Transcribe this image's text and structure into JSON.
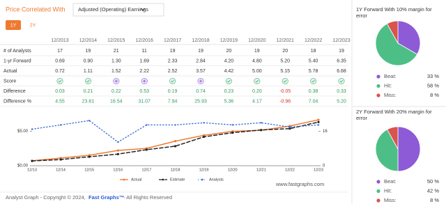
{
  "header": {
    "label": "Price Correlated With",
    "dropdown": "Adjusted (Operating) Earnings",
    "tabs": [
      "1Y",
      "2Y"
    ],
    "active_tab": 0
  },
  "table": {
    "columns": [
      "12/2013",
      "12/2014",
      "12/2015",
      "12/2016",
      "12/2017",
      "12/2018",
      "12/2019",
      "12/2020",
      "12/2021",
      "12/2022",
      "12/2023"
    ],
    "rows": [
      {
        "label": "# of Analysts",
        "cells": [
          "17",
          "19",
          "21",
          "11",
          "19",
          "19",
          "20",
          "19",
          "20",
          "18",
          "19"
        ]
      },
      {
        "label": "1-yr Forward",
        "cells": [
          "0.69",
          "0.90",
          "1.30",
          "1.69",
          "2.33",
          "2.84",
          "4.20",
          "4.80",
          "5.20",
          "5.40",
          "6.35"
        ]
      },
      {
        "label": "Actual",
        "cells": [
          "0.72",
          "1.11",
          "1.52",
          "2.22",
          "2.52",
          "3.57",
          "4.42",
          "5.00",
          "5.15",
          "5.78",
          "6.68"
        ]
      },
      {
        "label": "Score",
        "icons": [
          "hit",
          "hit",
          "beat",
          "beat",
          "hit",
          "beat",
          "hit",
          "hit",
          "hit",
          "hit",
          "hit"
        ]
      },
      {
        "label": "Difference",
        "cells": [
          "0.03",
          "0.21",
          "0.22",
          "0.53",
          "0.19",
          "0.74",
          "0.23",
          "0.20",
          "-0.05",
          "0.38",
          "0.33"
        ],
        "colored": true
      },
      {
        "label": "Difference %",
        "cells": [
          "4.55",
          "23.61",
          "16.54",
          "31.07",
          "7.94",
          "25.93",
          "5.36",
          "4.17",
          "-0.96",
          "7.04",
          "5.20"
        ],
        "colored": true
      }
    ]
  },
  "chart_data": [
    {
      "type": "line",
      "categories": [
        "12/13",
        "12/14",
        "12/15",
        "12/16",
        "12/17",
        "12/18",
        "12/19",
        "12/20",
        "12/21",
        "12/22",
        "12/23"
      ],
      "ylim": [
        0,
        7.7
      ],
      "yticks": [
        {
          "value": 0,
          "label": "$0.00"
        },
        {
          "value": 5,
          "label": "$5.00"
        }
      ],
      "y2lim": [
        0,
        24.64
      ],
      "y2ticks": [
        0,
        16
      ],
      "series": [
        {
          "name": "Actual",
          "color": "#ee7a30",
          "style": "solid",
          "values": [
            0.72,
            1.11,
            1.52,
            2.22,
            2.52,
            3.57,
            4.42,
            5.0,
            5.15,
            5.78,
            6.68
          ]
        },
        {
          "name": "Estimate",
          "color": "#222222",
          "style": "dashed",
          "values": [
            0.69,
            0.9,
            1.3,
            1.69,
            2.33,
            2.84,
            4.2,
            4.8,
            5.2,
            5.4,
            6.35
          ]
        },
        {
          "name": "Analysts",
          "color": "#3b6fd6",
          "style": "dotted",
          "axis": "y2",
          "values": [
            17,
            19,
            21,
            11,
            19,
            19,
            20,
            19,
            20,
            18,
            19
          ]
        }
      ]
    },
    {
      "type": "pie",
      "title": "1Y Forward With 10% margin for error",
      "categories": [
        "Beat:",
        "Hit:",
        "Miss:"
      ],
      "values": [
        33,
        58,
        8
      ],
      "value_labels": [
        "33 %",
        "58 %",
        "8 %"
      ],
      "colors": [
        "#8e5bd6",
        "#4dbf86",
        "#d9534f"
      ]
    },
    {
      "type": "pie",
      "title": "2Y Forward With 20% margin for error",
      "categories": [
        "Beat:",
        "Hit:",
        "Miss:"
      ],
      "values": [
        50,
        42,
        8
      ],
      "value_labels": [
        "50 %",
        "42 %",
        "8 %"
      ],
      "colors": [
        "#8e5bd6",
        "#4dbf86",
        "#d9534f"
      ]
    }
  ],
  "footer": {
    "copyright": "Analyst Graph - Copyright © 2024,",
    "brand": "Fast Graphs™",
    "rights": "- All Rights Reserved",
    "site": "www.fastgraphs.com"
  }
}
